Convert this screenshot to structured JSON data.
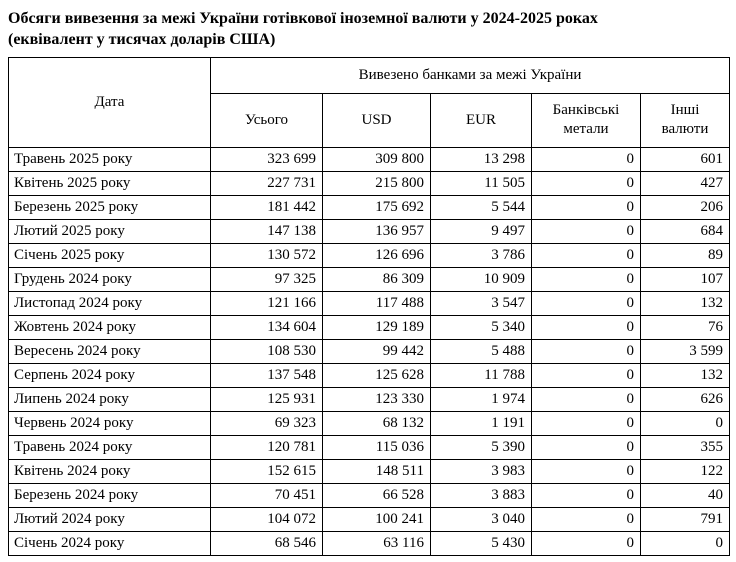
{
  "title": {
    "line1": "Обсяги вивезення за межі України готівкової іноземної валюти у 2024-2025 роках",
    "line2": "(еквівалент у тисячах доларів США)"
  },
  "table": {
    "date_header": "Дата",
    "group_header": "Вивезено банками за межі України",
    "columns": [
      "Усього",
      "USD",
      "EUR",
      "Банківські метали",
      "Інші валюти"
    ],
    "rows": [
      {
        "date": "Травень 2025 року",
        "values": [
          "323 699",
          "309 800",
          "13 298",
          "0",
          "601"
        ]
      },
      {
        "date": "Квітень 2025 року",
        "values": [
          "227 731",
          "215 800",
          "11 505",
          "0",
          "427"
        ]
      },
      {
        "date": "Березень 2025 року",
        "values": [
          "181 442",
          "175 692",
          "5 544",
          "0",
          "206"
        ]
      },
      {
        "date": "Лютий 2025 року",
        "values": [
          "147 138",
          "136 957",
          "9 497",
          "0",
          "684"
        ]
      },
      {
        "date": "Січень 2025 року",
        "values": [
          "130 572",
          "126 696",
          "3 786",
          "0",
          "89"
        ]
      },
      {
        "date": "Грудень 2024 року",
        "values": [
          "97 325",
          "86 309",
          "10 909",
          "0",
          "107"
        ]
      },
      {
        "date": "Листопад 2024 року",
        "values": [
          "121 166",
          "117 488",
          "3 547",
          "0",
          "132"
        ]
      },
      {
        "date": "Жовтень 2024 року",
        "values": [
          "134 604",
          "129 189",
          "5 340",
          "0",
          "76"
        ]
      },
      {
        "date": "Вересень 2024 року",
        "values": [
          "108 530",
          "99 442",
          "5 488",
          "0",
          "3 599"
        ]
      },
      {
        "date": "Серпень 2024 року",
        "values": [
          "137 548",
          "125 628",
          "11 788",
          "0",
          "132"
        ]
      },
      {
        "date": "Липень 2024 року",
        "values": [
          "125 931",
          "123 330",
          "1 974",
          "0",
          "626"
        ]
      },
      {
        "date": "Червень 2024 року",
        "values": [
          "69 323",
          "68 132",
          "1 191",
          "0",
          "0"
        ]
      },
      {
        "date": "Травень 2024 року",
        "values": [
          "120 781",
          "115 036",
          "5 390",
          "0",
          "355"
        ]
      },
      {
        "date": "Квітень 2024 року",
        "values": [
          "152 615",
          "148 511",
          "3 983",
          "0",
          "122"
        ]
      },
      {
        "date": "Березень 2024 року",
        "values": [
          "70 451",
          "66 528",
          "3 883",
          "0",
          "40"
        ]
      },
      {
        "date": "Лютий 2024 року",
        "values": [
          "104 072",
          "100 241",
          "3 040",
          "0",
          "791"
        ]
      },
      {
        "date": "Січень 2024 року",
        "values": [
          "68 546",
          "63 116",
          "5 430",
          "0",
          "0"
        ]
      }
    ]
  },
  "chart_data": {
    "type": "table",
    "title": "Обсяги вивезення за межі України готівкової іноземної валюти у 2024-2025 роках (еквівалент у тисячах доларів США)",
    "group_header": "Вивезено банками за межі України",
    "columns": [
      "Дата",
      "Усього",
      "USD",
      "EUR",
      "Банківські метали",
      "Інші валюти"
    ],
    "rows": [
      [
        "Травень 2025 року",
        323699,
        309800,
        13298,
        0,
        601
      ],
      [
        "Квітень 2025 року",
        227731,
        215800,
        11505,
        0,
        427
      ],
      [
        "Березень 2025 року",
        181442,
        175692,
        5544,
        0,
        206
      ],
      [
        "Лютий 2025 року",
        147138,
        136957,
        9497,
        0,
        684
      ],
      [
        "Січень 2025 року",
        130572,
        126696,
        3786,
        0,
        89
      ],
      [
        "Грудень 2024 року",
        97325,
        86309,
        10909,
        0,
        107
      ],
      [
        "Листопад 2024 року",
        121166,
        117488,
        3547,
        0,
        132
      ],
      [
        "Жовтень 2024 року",
        134604,
        129189,
        5340,
        0,
        76
      ],
      [
        "Вересень 2024 року",
        108530,
        99442,
        5488,
        0,
        3599
      ],
      [
        "Серпень 2024 року",
        137548,
        125628,
        11788,
        0,
        132
      ],
      [
        "Липень 2024 року",
        125931,
        123330,
        1974,
        0,
        626
      ],
      [
        "Червень 2024 року",
        69323,
        68132,
        1191,
        0,
        0
      ],
      [
        "Травень 2024 року",
        120781,
        115036,
        5390,
        0,
        355
      ],
      [
        "Квітень 2024 року",
        152615,
        148511,
        3983,
        0,
        122
      ],
      [
        "Березень 2024 року",
        70451,
        66528,
        3883,
        0,
        40
      ],
      [
        "Лютий 2024 року",
        104072,
        100241,
        3040,
        0,
        791
      ],
      [
        "Січень 2024 року",
        68546,
        63116,
        5430,
        0,
        0
      ]
    ]
  }
}
